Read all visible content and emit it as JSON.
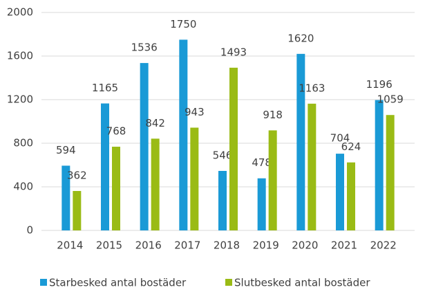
{
  "chart_data": {
    "type": "bar",
    "categories": [
      "2014",
      "2015",
      "2016",
      "2017",
      "2018",
      "2019",
      "2020",
      "2021",
      "2022"
    ],
    "series": [
      {
        "name": "Starbesked antal bostäder",
        "color": "#1a9ad6",
        "values": [
          594,
          1165,
          1536,
          1750,
          546,
          478,
          1620,
          704,
          1196
        ]
      },
      {
        "name": "Slutbesked antal bostäder",
        "color": "#9abb15",
        "values": [
          362,
          768,
          842,
          943,
          1493,
          918,
          1163,
          624,
          1059
        ]
      }
    ],
    "ylim": [
      0,
      2000
    ],
    "yticks": [
      0,
      400,
      800,
      1200,
      1600,
      2000
    ],
    "grid": true,
    "legend": "bottom"
  }
}
